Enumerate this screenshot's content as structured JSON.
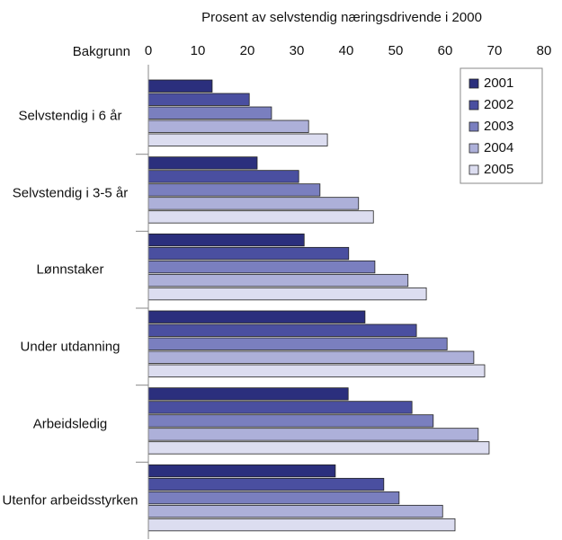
{
  "chart_data": {
    "type": "bar",
    "orientation": "horizontal",
    "title": "Prosent av selvstendig næringsdrivende i 2000",
    "y_label": "Bakgrunn",
    "categories": [
      "Selvstendig i 6 år",
      "Selvstendig i 3-5 år",
      "Lønnstaker",
      "Under utdanning",
      "Arbeidsledig",
      "Utenfor arbeidsstyrken"
    ],
    "series": [
      {
        "name": "2001",
        "color": "#2b2f7d",
        "values": [
          12.9,
          22,
          31.5,
          43.8,
          40.4,
          37.8
        ]
      },
      {
        "name": "2002",
        "color": "#4a4fa0",
        "values": [
          20.4,
          30.4,
          40.5,
          54.2,
          53.3,
          47.6
        ]
      },
      {
        "name": "2003",
        "color": "#7a7fbf",
        "values": [
          24.9,
          34.7,
          45.8,
          60.4,
          57.6,
          50.7
        ]
      },
      {
        "name": "2004",
        "color": "#adb0d9",
        "values": [
          32.4,
          42.5,
          52.5,
          65.8,
          66.7,
          59.5
        ]
      },
      {
        "name": "2005",
        "color": "#dcddf0",
        "values": [
          36.2,
          45.5,
          56.2,
          68,
          68.9,
          62
        ]
      }
    ],
    "xlim": [
      0,
      80
    ],
    "xticks": [
      0,
      10,
      20,
      30,
      40,
      50,
      60,
      70,
      80
    ],
    "legend": "upper right"
  }
}
